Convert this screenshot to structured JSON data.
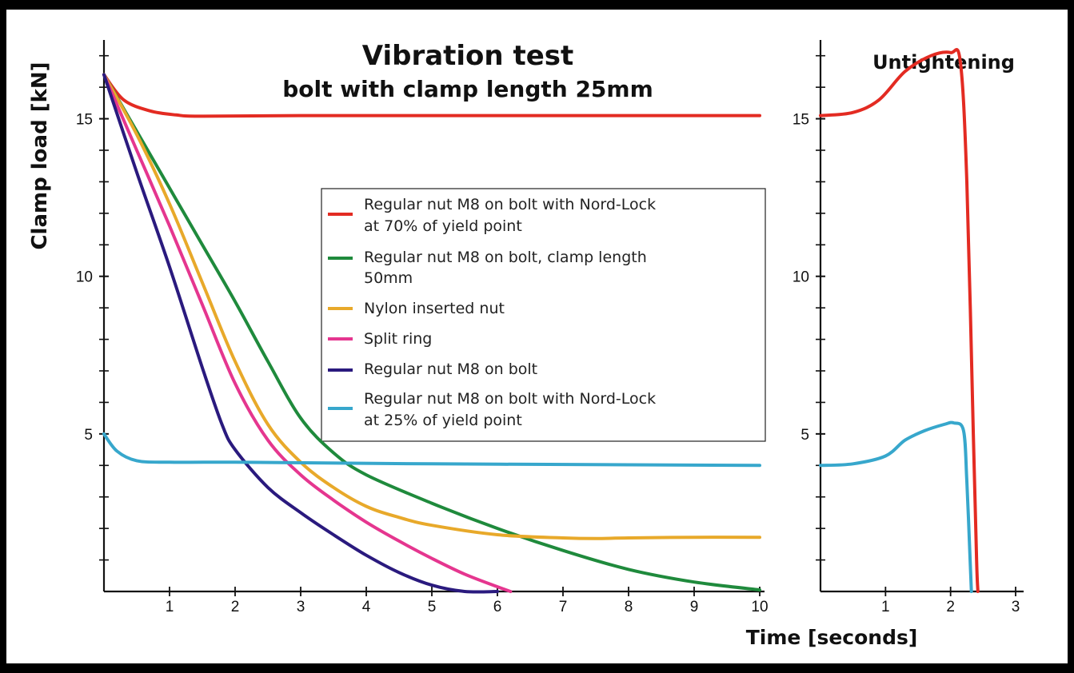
{
  "chart_data": [
    {
      "type": "line",
      "title": "Vibration test",
      "subtitle": "bolt with clamp length 25mm",
      "xlabel": "Time [seconds]",
      "ylabel": "Clamp load [kN]",
      "xlim": [
        0,
        10
      ],
      "ylim": [
        0,
        17.5
      ],
      "xticks": [
        1,
        2,
        3,
        4,
        5,
        6,
        7,
        8,
        9,
        10
      ],
      "yticks": [
        5,
        10,
        15
      ],
      "legend": "center",
      "series": [
        {
          "name": "Regular nut M8 on bolt with Nord-Lock at 70% of yield point",
          "color": "#e32b22",
          "x": [
            0,
            0.3,
            0.7,
            1.1,
            1.5,
            3,
            6,
            10
          ],
          "y": [
            16.4,
            15.6,
            15.25,
            15.12,
            15.08,
            15.1,
            15.1,
            15.1
          ]
        },
        {
          "name": "Regular nut M8 on bolt, clamp length 50mm",
          "color": "#1f8a3c",
          "x": [
            0,
            0.5,
            1,
            1.5,
            2,
            2.5,
            3,
            3.5,
            4,
            5,
            6,
            7,
            8,
            9,
            10
          ],
          "y": [
            16.4,
            14.6,
            12.8,
            11,
            9.2,
            7.3,
            5.5,
            4.4,
            3.7,
            2.8,
            2,
            1.3,
            0.7,
            0.3,
            0.05
          ]
        },
        {
          "name": "Nylon inserted nut",
          "color": "#e8a92a",
          "x": [
            0,
            0.5,
            1,
            1.5,
            2,
            2.5,
            3,
            3.5,
            4,
            4.5,
            5,
            6,
            7,
            7.5,
            8,
            9,
            10
          ],
          "y": [
            16.4,
            14.5,
            12.3,
            9.8,
            7.3,
            5.3,
            4.1,
            3.3,
            2.7,
            2.35,
            2.1,
            1.8,
            1.7,
            1.68,
            1.7,
            1.72,
            1.72
          ]
        },
        {
          "name": "Split ring",
          "color": "#e5368f",
          "x": [
            0,
            0.5,
            1,
            1.5,
            2,
            2.5,
            3,
            3.5,
            4,
            4.5,
            5,
            5.5,
            6,
            6.2
          ],
          "y": [
            16.4,
            14,
            11.6,
            9.1,
            6.6,
            4.8,
            3.7,
            2.9,
            2.2,
            1.6,
            1.05,
            0.55,
            0.15,
            0
          ]
        },
        {
          "name": "Regular nut M8 on bolt",
          "color": "#2a1a7e",
          "x": [
            0,
            0.5,
            1,
            1.5,
            1.8,
            2,
            2.5,
            3,
            3.5,
            4,
            4.5,
            5,
            5.5,
            6
          ],
          "y": [
            16.4,
            13.3,
            10.3,
            7.1,
            5.3,
            4.5,
            3.3,
            2.5,
            1.8,
            1.15,
            0.6,
            0.2,
            0,
            0
          ]
        },
        {
          "name": "Regular nut M8 on bolt with Nord-Lock at 25% of yield point",
          "color": "#37a7cc",
          "x": [
            0,
            0.2,
            0.5,
            1,
            2,
            5,
            8,
            10
          ],
          "y": [
            5,
            4.45,
            4.15,
            4.1,
            4.1,
            4.05,
            4.02,
            4.0
          ]
        }
      ]
    },
    {
      "type": "line",
      "title": "Untightening",
      "xlim": [
        0,
        3
      ],
      "ylim": [
        0,
        17.5
      ],
      "xticks": [
        1,
        2,
        3
      ],
      "yticks": [
        5,
        10,
        15
      ],
      "series": [
        {
          "name": "Nord-Lock at 70% of yield point",
          "color": "#e32b22",
          "x": [
            0,
            0.5,
            0.9,
            1.3,
            1.7,
            2.0,
            2.15,
            2.25,
            2.35,
            2.4,
            2.42
          ],
          "y": [
            15.1,
            15.2,
            15.6,
            16.5,
            17.0,
            17.1,
            16.8,
            13,
            5,
            1,
            0
          ]
        },
        {
          "name": "Nord-Lock at 25% of yield point",
          "color": "#37a7cc",
          "x": [
            0,
            0.5,
            1.0,
            1.3,
            1.6,
            1.9,
            2.05,
            2.2,
            2.25,
            2.3,
            2.32
          ],
          "y": [
            4.0,
            4.05,
            4.3,
            4.8,
            5.1,
            5.3,
            5.35,
            5.1,
            3.5,
            1,
            0
          ]
        }
      ]
    }
  ]
}
